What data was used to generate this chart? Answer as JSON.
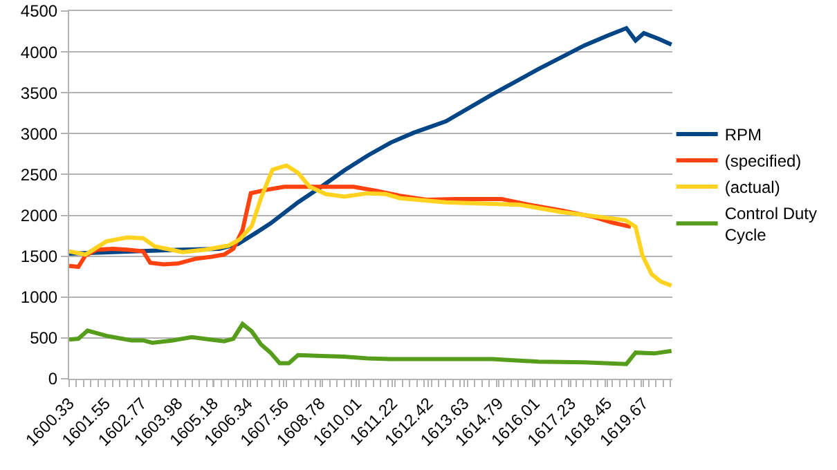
{
  "chart_data": {
    "type": "line",
    "xlim": [
      1600.33,
      1620.65
    ],
    "xticks": [
      1600.33,
      1601.55,
      1602.77,
      1603.98,
      1605.18,
      1606.34,
      1607.56,
      1608.78,
      1610.01,
      1611.22,
      1612.42,
      1613.63,
      1614.79,
      1616.01,
      1617.23,
      1618.45,
      1619.67
    ],
    "ylim": [
      0,
      4500
    ],
    "yticks": [
      0,
      500,
      1000,
      1500,
      2000,
      2500,
      3000,
      3500,
      4000,
      4500
    ],
    "grid": "y",
    "legend": "right",
    "marker": "none",
    "series": [
      {
        "name": "RPM",
        "color": "#004586",
        "x": [
          1600.33,
          1601.81,
          1602.59,
          1604.15,
          1605.39,
          1606.02,
          1606.64,
          1607.11,
          1608.04,
          1608.82,
          1609.6,
          1610.38,
          1611.16,
          1611.93,
          1613.02,
          1614.58,
          1616.14,
          1617.69,
          1618.47,
          1619.1,
          1619.41,
          1619.69,
          1620.19,
          1620.62
        ],
        "values": [
          1530,
          1550,
          1560,
          1580,
          1590,
          1650,
          1790,
          1900,
          2160,
          2350,
          2550,
          2730,
          2890,
          3010,
          3150,
          3480,
          3790,
          4080,
          4200,
          4290,
          4140,
          4230,
          4160,
          4090
        ]
      },
      {
        "name": "(specified)",
        "color": "#ff420e",
        "x": [
          1600.33,
          1600.64,
          1600.88,
          1601.26,
          1601.81,
          1602.28,
          1602.82,
          1603.06,
          1603.52,
          1603.99,
          1604.61,
          1605.08,
          1605.55,
          1605.86,
          1606.17,
          1606.45,
          1606.95,
          1607.57,
          1608.82,
          1609.91,
          1610.69,
          1611.47,
          1612.4,
          1613.33,
          1614.89,
          1615.82,
          1616.91,
          1618.0,
          1618.63,
          1619.25
        ],
        "values": [
          1380,
          1370,
          1510,
          1580,
          1590,
          1580,
          1560,
          1420,
          1400,
          1410,
          1470,
          1490,
          1520,
          1590,
          1820,
          2270,
          2310,
          2350,
          2350,
          2350,
          2300,
          2240,
          2190,
          2200,
          2200,
          2130,
          2060,
          1980,
          1910,
          1860
        ]
      },
      {
        "name": "(actual)",
        "color": "#ffd320",
        "x": [
          1600.33,
          1600.88,
          1601.58,
          1602.28,
          1602.82,
          1603.21,
          1604.15,
          1604.92,
          1605.7,
          1606.09,
          1606.48,
          1606.79,
          1607.18,
          1607.65,
          1608.04,
          1608.43,
          1608.97,
          1609.6,
          1610.38,
          1611.0,
          1611.47,
          1613.02,
          1615.5,
          1616.91,
          1618.0,
          1619.07,
          1619.41,
          1619.64,
          1619.95,
          1620.26,
          1620.62
        ],
        "values": [
          1560,
          1520,
          1680,
          1730,
          1720,
          1620,
          1550,
          1580,
          1630,
          1710,
          1870,
          2210,
          2560,
          2610,
          2520,
          2350,
          2260,
          2230,
          2270,
          2260,
          2210,
          2160,
          2130,
          2040,
          1990,
          1940,
          1860,
          1510,
          1280,
          1190,
          1140
        ]
      },
      {
        "name": "Control Duty Cycle",
        "color": "#579d1c",
        "x": [
          1600.33,
          1600.64,
          1600.95,
          1601.65,
          1602.43,
          1602.82,
          1603.13,
          1603.83,
          1604.46,
          1605.08,
          1605.55,
          1605.86,
          1606.17,
          1606.48,
          1606.79,
          1607.11,
          1607.42,
          1607.73,
          1608.04,
          1608.82,
          1609.6,
          1610.38,
          1611.16,
          1611.93,
          1614.58,
          1616.14,
          1617.69,
          1619.1,
          1619.41,
          1620.03,
          1620.62
        ],
        "values": [
          480,
          490,
          590,
          520,
          470,
          470,
          440,
          470,
          510,
          480,
          460,
          490,
          670,
          580,
          420,
          320,
          190,
          190,
          290,
          280,
          270,
          250,
          240,
          240,
          240,
          210,
          200,
          180,
          320,
          310,
          340
        ]
      }
    ]
  }
}
